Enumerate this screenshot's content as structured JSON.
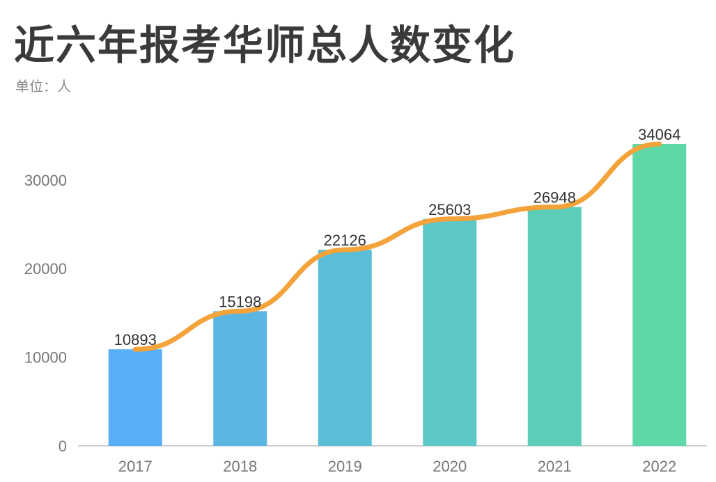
{
  "chart_data": {
    "type": "bar",
    "title": "近六年报考华师总人数变化",
    "subtitle": "单位：人",
    "categories": [
      "2017",
      "2018",
      "2019",
      "2020",
      "2021",
      "2022"
    ],
    "values": [
      10893,
      15198,
      22126,
      25603,
      26948,
      34064
    ],
    "data_labels": [
      "10893",
      "15198",
      "22126",
      "25603",
      "26948",
      "34064"
    ],
    "y_ticks": [
      0,
      10000,
      20000,
      30000
    ],
    "y_tick_labels": [
      "0",
      "10000",
      "20000",
      "30000"
    ],
    "ylim": [
      0,
      34064
    ],
    "overlay_line": {
      "type": "line",
      "values": [
        10893,
        15198,
        22126,
        25603,
        26948,
        34064
      ],
      "color": "#f4a23a"
    },
    "bar_colors": [
      "#5aaef5",
      "#5bb5e3",
      "#5bbed7",
      "#5cc8c8",
      "#5ccdb9",
      "#5fd8a8"
    ],
    "grid": false,
    "legend": "none"
  }
}
